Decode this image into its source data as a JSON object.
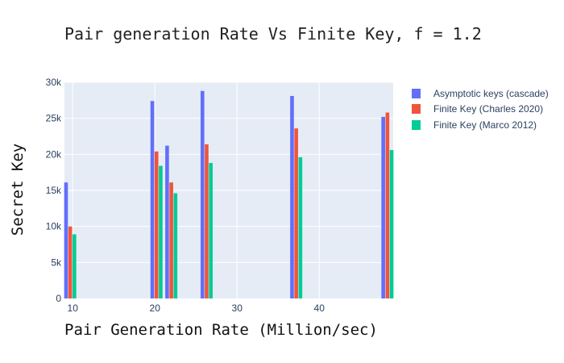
{
  "chart_data": {
    "type": "bar",
    "title": "Pair generation Rate Vs Finite Key, f = 1.2",
    "xlabel": "Pair Generation Rate (Million/sec)",
    "ylabel": "Secret Key",
    "xlim": [
      9,
      49
    ],
    "ylim": [
      0,
      30000
    ],
    "xticks": [
      10,
      20,
      30,
      40
    ],
    "xtick_labels": [
      "10",
      "20",
      "30",
      "40"
    ],
    "yticks": [
      0,
      5000,
      10000,
      15000,
      20000,
      25000,
      30000
    ],
    "ytick_labels": [
      "0",
      "5k",
      "10k",
      "15k",
      "20k",
      "25k",
      "30k"
    ],
    "grid": true,
    "legend_position": "right",
    "x": [
      9.7,
      20.2,
      22,
      26.3,
      37.2,
      48.3
    ],
    "series": [
      {
        "name": "Asymptotic keys (cascade)",
        "color": "#636efa",
        "values": [
          16100,
          27400,
          21200,
          28800,
          28100,
          25200
        ]
      },
      {
        "name": "Finite Key (Charles 2020)",
        "color": "#ef553b",
        "values": [
          10000,
          20400,
          16100,
          21400,
          23600,
          25800
        ]
      },
      {
        "name": "Finite Key (Marco 2012)",
        "color": "#00cc96",
        "values": [
          8900,
          18400,
          14600,
          18800,
          19600,
          20600
        ]
      }
    ]
  }
}
